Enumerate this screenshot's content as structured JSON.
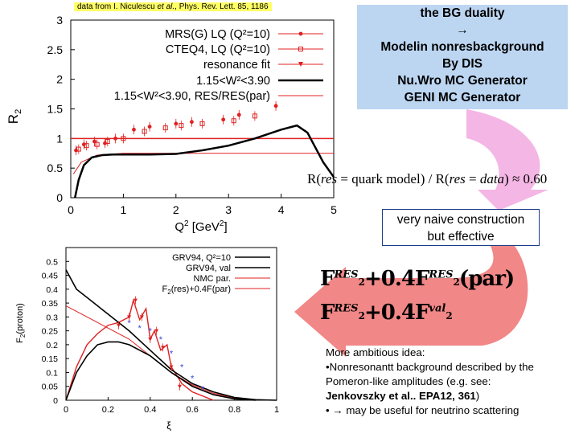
{
  "caption": {
    "prefix": "data from I. Niculescu ",
    "etal": "et al.",
    "suffix": ", Phys. Rev. Lett. 85, 1186"
  },
  "bg_box": {
    "line1": "the BG duality",
    "arrow": "→",
    "line2": "Modelin nonresbackground",
    "line3": "By DIS",
    "line4": "Nu.Wro MC Generator",
    "line5": "GENI MC Generator"
  },
  "ratio_formula": {
    "prefix": "R(",
    "res1": "res",
    "mid": " = quark model) / R(",
    "res2": "res",
    "eq": " = ",
    "data": "data",
    "suffix": ") ≈ 0.60"
  },
  "naive_box": {
    "line1": "very naive construction",
    "line2": "but effective"
  },
  "formula": {
    "line1_f": "F",
    "line1_sup1": "RES",
    "line1_sub1": "2",
    "line1_mid": "+0.4F",
    "line1_sup2": "RES",
    "line1_sub2": "2",
    "line1_tail": "(par)",
    "line2_f": "F",
    "line2_sup1": "RES",
    "line2_sub1": "2",
    "line2_mid": "+0.4F",
    "line2_sup2": "val",
    "line2_sub2": "2"
  },
  "ambitious": {
    "line1": "More ambitious idea:",
    "line2": "•Nonresonantt background described by the Pomeron-like amplitudes (e.g. see:",
    "line3": "Jenkovszky et al.. EPA12, 361",
    "line3_tail": ")",
    "line4_bullet": "• ",
    "line4_arrow": "→",
    "line4_text": " may be useful for neutrino scattering"
  },
  "colors": {
    "bg_box": "#bcd6f2",
    "pink_arrow": "#f4b6e4",
    "red_arrow": "#f07a7a",
    "red_series": "#e02020",
    "blue_series": "#3344dd"
  },
  "chart_data": [
    {
      "type": "line",
      "title": "",
      "xlabel": "Q2 [GeV2]",
      "xlabel_main": "Q",
      "xlabel_sup1": "2",
      "xlabel_mid": " [GeV",
      "xlabel_sup2": "2",
      "xlabel_end": "]",
      "ylabel": "R2",
      "ylabel_main": "R",
      "ylabel_sub": "2",
      "xlim": [
        0,
        5
      ],
      "ylim": [
        0,
        3
      ],
      "xticks": [
        "0",
        "1",
        "2",
        "3",
        "4",
        "5"
      ],
      "yticks": [
        "0",
        "0.5",
        "1",
        "1.5",
        "2",
        "2.5",
        "3"
      ],
      "legend": [
        "MRS(G) LQ (Q²=10)",
        "CTEQ4, LQ (Q²=10)",
        "resonance fit",
        "1.15<W²<3.90",
        "1.15<W²<3.90, RES/RES(par)"
      ],
      "series": [
        {
          "name": "1.15<W2<3.90",
          "x": [
            0.08,
            0.15,
            0.25,
            0.4,
            0.6,
            0.8,
            1.0,
            1.5,
            2.0,
            2.5,
            3.0,
            3.5,
            4.0,
            4.3,
            4.5,
            4.8,
            5.0
          ],
          "y": [
            0.0,
            0.3,
            0.55,
            0.68,
            0.72,
            0.73,
            0.73,
            0.73,
            0.74,
            0.8,
            0.88,
            1.0,
            1.15,
            1.22,
            1.1,
            0.6,
            0.35
          ]
        },
        {
          "name": "1.15<W2<3.90, RES/RES(par)",
          "x": [
            0.05,
            0.2,
            0.5,
            1.0,
            2.0,
            3.0,
            4.0,
            5.0
          ],
          "y": [
            0.4,
            0.6,
            0.72,
            0.75,
            0.75,
            0.75,
            0.75,
            0.75
          ]
        },
        {
          "name": "resonance fit",
          "x": [
            0.0,
            5.0
          ],
          "y": [
            1.0,
            1.0
          ]
        },
        {
          "name": "MRS(G) LQ (Q2=10)",
          "x": [
            0.1,
            0.25,
            0.45,
            0.65,
            0.85,
            1.2,
            1.5,
            2.0,
            2.3,
            2.9,
            3.2,
            3.9
          ],
          "y": [
            0.8,
            0.9,
            0.95,
            0.92,
            1.0,
            1.15,
            1.2,
            1.25,
            1.28,
            1.32,
            1.4,
            1.55
          ]
        },
        {
          "name": "CTEQ4, LQ (Q2=10)",
          "x": [
            0.15,
            0.3,
            0.5,
            0.7,
            1.0,
            1.4,
            1.8,
            2.1,
            2.5,
            3.1,
            3.5
          ],
          "y": [
            0.82,
            0.88,
            0.9,
            0.95,
            1.0,
            1.12,
            1.18,
            1.22,
            1.25,
            1.3,
            1.38
          ]
        }
      ]
    },
    {
      "type": "line",
      "title": "",
      "xlabel": "ξ",
      "ylabel": "F2(proton)",
      "ylabel_main": "F",
      "ylabel_sub": "2",
      "ylabel_tail": "(proton)",
      "xlim": [
        0,
        1
      ],
      "ylim": [
        0,
        0.55
      ],
      "xticks": [
        "0",
        "0.2",
        "0.4",
        "0.6",
        "0.8",
        "1"
      ],
      "yticks": [
        "0",
        "0.05",
        "0.1",
        "0.15",
        "0.2",
        "0.25",
        "0.3",
        "0.35",
        "0.4",
        "0.45",
        "0.5"
      ],
      "legend": [
        "GRV94, Q²=10",
        "GRV94, val",
        "NMC par.",
        "F2(res)+0.4F(par)"
      ],
      "legend_last": {
        "main": "F",
        "sub": "2",
        "tail": "(res)+0.4F(par)"
      },
      "series": [
        {
          "name": "GRV94, Q2=10",
          "x": [
            0.0,
            0.05,
            0.1,
            0.15,
            0.2,
            0.3,
            0.4,
            0.5,
            0.6,
            0.7,
            0.8,
            0.9,
            1.0
          ],
          "y": [
            0.47,
            0.4,
            0.37,
            0.34,
            0.31,
            0.25,
            0.18,
            0.11,
            0.06,
            0.03,
            0.01,
            0.002,
            0.0
          ]
        },
        {
          "name": "GRV94, val",
          "x": [
            0.0,
            0.05,
            0.1,
            0.15,
            0.2,
            0.25,
            0.3,
            0.4,
            0.5,
            0.6,
            0.7,
            0.8,
            0.9
          ],
          "y": [
            0.0,
            0.1,
            0.16,
            0.2,
            0.21,
            0.21,
            0.2,
            0.16,
            0.1,
            0.05,
            0.02,
            0.005,
            0.0
          ]
        },
        {
          "name": "NMC par.",
          "x": [
            0.0,
            0.1,
            0.2,
            0.3,
            0.4,
            0.5,
            0.6,
            0.7,
            0.8,
            0.9
          ],
          "y": [
            0.34,
            0.3,
            0.26,
            0.22,
            0.16,
            0.1,
            0.055,
            0.025,
            0.008,
            0.0
          ]
        },
        {
          "name": "F2(res)+0.4F(par)",
          "x": [
            0.0,
            0.05,
            0.1,
            0.15,
            0.2,
            0.25,
            0.3,
            0.32,
            0.35,
            0.38,
            0.4,
            0.42,
            0.45,
            0.48,
            0.5,
            0.55,
            0.6,
            0.7
          ],
          "y": [
            0.0,
            0.12,
            0.2,
            0.24,
            0.27,
            0.28,
            0.3,
            0.36,
            0.29,
            0.33,
            0.22,
            0.25,
            0.18,
            0.2,
            0.12,
            0.06,
            0.03,
            0.0
          ]
        },
        {
          "name": "data (blue)",
          "x": [
            0.3,
            0.35,
            0.4,
            0.45,
            0.5,
            0.55,
            0.6,
            0.65
          ],
          "y": [
            0.28,
            0.26,
            0.25,
            0.22,
            0.17,
            0.12,
            0.08,
            0.04
          ]
        },
        {
          "name": "data (red)",
          "x": [
            0.25,
            0.3,
            0.33,
            0.36,
            0.4,
            0.43,
            0.46,
            0.5,
            0.54
          ],
          "y": [
            0.27,
            0.3,
            0.36,
            0.3,
            0.22,
            0.25,
            0.19,
            0.12,
            0.05
          ]
        }
      ]
    }
  ]
}
